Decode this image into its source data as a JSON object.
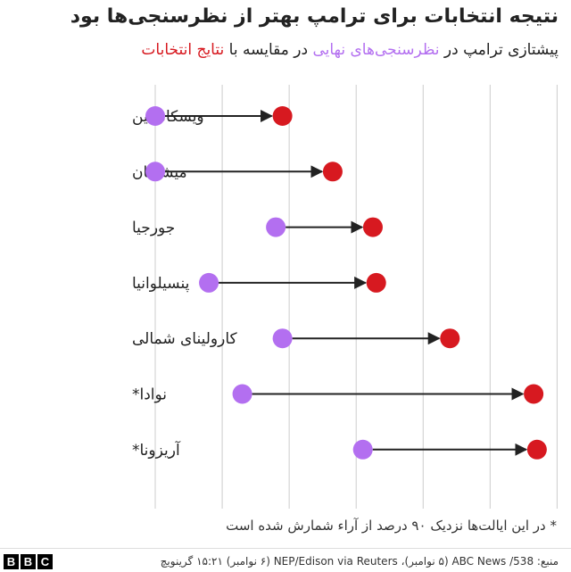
{
  "header": {
    "title": "نتیجه انتخابات برای ترامپ بهتر از نظرسنجی‌ها بود",
    "subtitle_part1": "پیشتازی ترامپ در ",
    "subtitle_polls": "نظرسنجی‌های نهایی",
    "subtitle_part2": " در مقایسه با ",
    "subtitle_results": "نتایج انتخابات"
  },
  "colors": {
    "polls": "#b36ff0",
    "results": "#d71920",
    "arrow": "#222222",
    "grid": "#cccccc"
  },
  "chart_data": {
    "type": "dumbbell-arrow",
    "x_ticks": [
      0,
      2,
      4,
      6,
      8,
      10,
      12
    ],
    "xlim": [
      -0.3,
      12.3
    ],
    "grid": true,
    "legend": "in-subtitle",
    "categories": [
      "ویسکانسین",
      "میشیگان",
      "جورجیا",
      "پنسیلوانیا",
      "کارولینای شمالی",
      "نوادا*",
      "آریزونا*"
    ],
    "series": [
      {
        "name": "نظرسنجی‌های نهایی",
        "values": [
          0.0,
          0.0,
          3.6,
          1.6,
          3.8,
          2.6,
          6.2
        ]
      },
      {
        "name": "نتایج انتخابات",
        "values": [
          3.8,
          5.3,
          6.5,
          6.6,
          8.8,
          11.3,
          11.4
        ]
      }
    ]
  },
  "footnote": "* در این ایالت‌ها نزدیک ۹۰ درصد از آراء شمارش شده است",
  "footer": {
    "logo": [
      "B",
      "B",
      "C"
    ],
    "source": "منبع: 538/ ABC News (۵ نوامبر)، NEP/Edison via Reuters (۶ نوامبر) ۱۵:۲۱ گرینویچ"
  }
}
